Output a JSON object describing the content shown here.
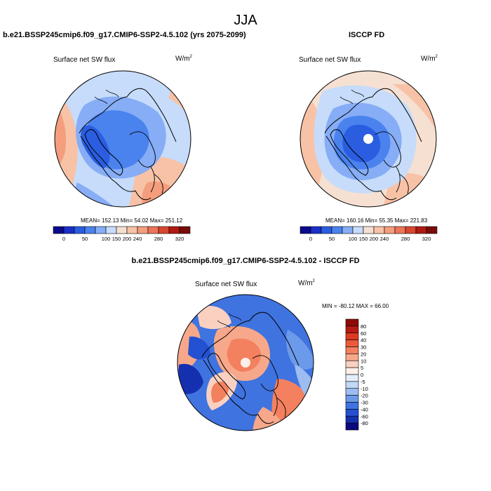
{
  "figure": {
    "title": "JJA"
  },
  "panels": [
    {
      "title": "b.e21.BSSP245cmip6.f09_g17.CMIP6-SSP2-4.5.102 (yrs 2075-2099)",
      "variable": "Surface net SW flux",
      "units_base": "W/m",
      "units_exp": "2",
      "stats": "MEAN= 152.13  Min=  54.02  Max= 251.12"
    },
    {
      "title": "ISCCP FD",
      "variable": "Surface net SW flux",
      "units_base": "W/m",
      "units_exp": "2",
      "stats": "MEAN= 160.16  Min=  55.35  Max= 221.83"
    },
    {
      "title": "b.e21.BSSP245cmip6.f09_g17.CMIP6-SSP2-4.5.102 - ISCCP FD",
      "variable": "Surface net SW flux",
      "units_base": "W/m",
      "units_exp": "2",
      "stats": "MIN = -80.12 MAX =  66.00"
    }
  ],
  "colorbar_top": {
    "labels": [
      "0",
      "50",
      "100",
      "150",
      "200",
      "240",
      "280",
      "320"
    ],
    "colors": [
      "#0a0a8c",
      "#1a2fc8",
      "#2a5de0",
      "#4a82ee",
      "#86adf5",
      "#c6dcfa",
      "#f5e0d2",
      "#f8c2a6",
      "#f49e7e",
      "#ec7559",
      "#d8472f",
      "#b01a12",
      "#7a0b08"
    ]
  },
  "colorbar_diff": {
    "labels": [
      "80",
      "60",
      "40",
      "30",
      "20",
      "10",
      "5",
      "0",
      "-5",
      "-10",
      "-20",
      "-30",
      "-40",
      "-60",
      "-80"
    ],
    "colors": [
      "#8c0b08",
      "#b81a12",
      "#dc3a24",
      "#ec5a3a",
      "#f3805e",
      "#f7a88a",
      "#fad1c0",
      "#fdf0ea",
      "#e4eefb",
      "#c2d8f7",
      "#9dbdf2",
      "#6c9aea",
      "#3f73e0",
      "#2450d2",
      "#1530ae",
      "#0a0a7c"
    ]
  }
}
